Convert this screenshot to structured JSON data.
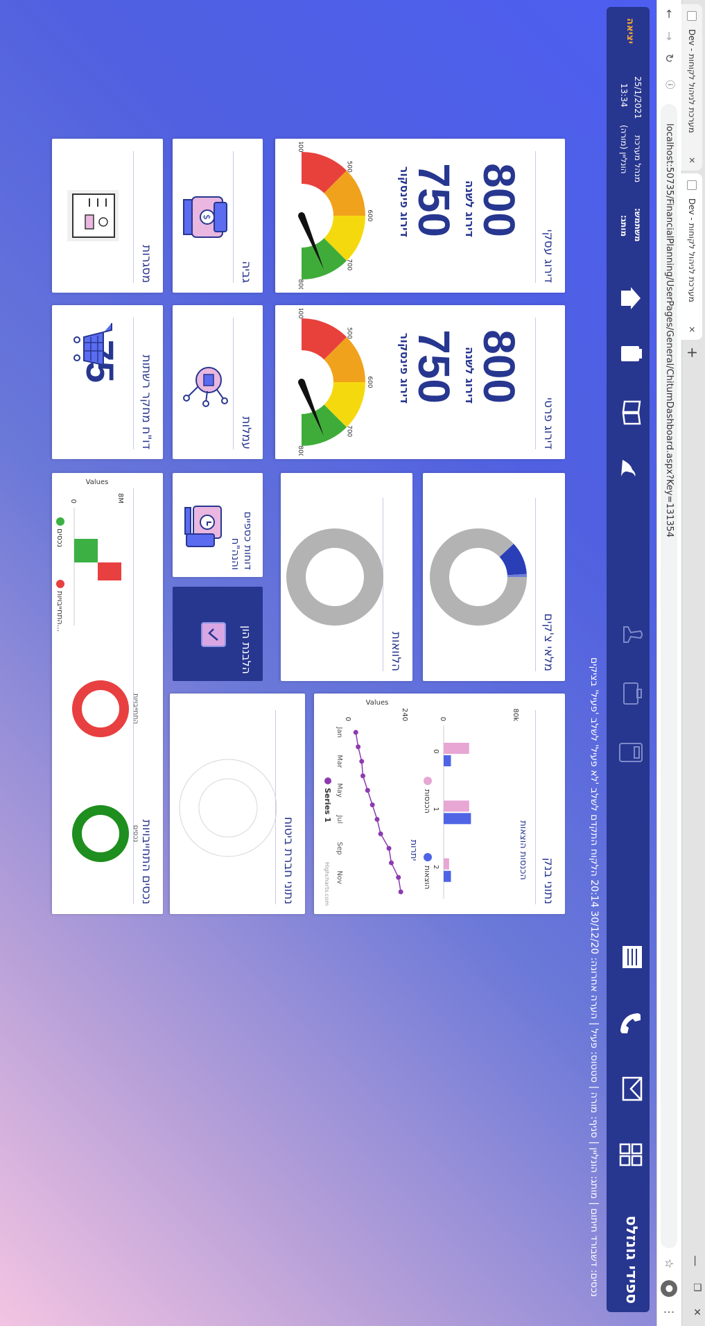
{
  "browser": {
    "tabs": [
      {
        "label": "Dev - מערכת לניהול לקוחות"
      },
      {
        "label": "Dev - מערכת לניהול לקוחות"
      }
    ],
    "new_tab": "+",
    "url": "localhost:50735/FinancialPlanning/UserPages/General/ChitumDashboard.aspx?Key=131354"
  },
  "header": {
    "exit_label": "יציאה",
    "date": "25/1/2021",
    "time": "13:34",
    "manager_label": "מנהל מערכת",
    "manager_value": "הונליין (מורה)",
    "user_label": "משתמש:",
    "branch_label": "מותג:",
    "customer_name": "ספידי גונזלס",
    "status_line": "נכסים: דשבורד חיתום | מותג: הונליין | סניף: מורה | סטטוס: פעיל | הערה אחרונה: 30/12/20 20:14 הלקוח התקדם לשלב 'לא פעיל' לשלב 'פעיל' בציקים"
  },
  "cards": {
    "business_rating": {
      "title": "דירוג עסקי",
      "yearly_value": "800",
      "yearly_label": "דירוג לשנה",
      "finscore_value": "750",
      "finscore_label": "דירוג פינסקור",
      "gauge": {
        "min": 400,
        "max": 800,
        "ticks": [
          "400",
          "500",
          "600",
          "700",
          "800"
        ],
        "value": 750
      }
    },
    "private_rating": {
      "title": "דירוג פרטי",
      "yearly_value": "800",
      "yearly_label": "דירוג לשנה",
      "finscore_value": "750",
      "finscore_label": "דירוג פינסקור",
      "gauge": {
        "min": 400,
        "max": 800,
        "ticks": [
          "400",
          "500",
          "600",
          "700",
          "800"
        ],
        "value": 750
      }
    },
    "check_inventory": {
      "title": "מלאי צ'קים"
    },
    "loans": {
      "title": "הלוואות"
    },
    "bank_data": {
      "title": "נתוני בנק"
    },
    "insurance_data": {
      "title": "נתוני חברת ביטוח"
    },
    "collection": {
      "title": "גביה"
    },
    "commissions": {
      "title": "עמלות"
    },
    "financial_reports": {
      "title": "דוחות כספיים והנה\"ח"
    },
    "money_laundering": {
      "title": "הלבנת הון"
    },
    "frameworks": {
      "title": "מסגרות"
    },
    "network_research": {
      "title": "דו\"ח מחקר רשתות",
      "value": "75"
    },
    "assets_liabilities": {
      "title": "נכסים התחייבויות"
    }
  },
  "chart_data": [
    {
      "type": "bar",
      "title": "הכנסות הוצאות",
      "categories": [
        "0",
        "1",
        "2"
      ],
      "series": [
        {
          "name": "הכנסות",
          "values": [
            28000,
            28000,
            6000
          ]
        },
        {
          "name": "הוצאות",
          "values": [
            8000,
            30000,
            8000
          ]
        }
      ],
      "ylim": [
        0,
        80000
      ],
      "ytick_labels": [
        "0",
        "80k"
      ],
      "colors": [
        "#e7a6d3",
        "#4f64e5"
      ],
      "legend": "bottom"
    },
    {
      "type": "line",
      "title": "יתרות",
      "ylabel": "Values",
      "categories": [
        "Jan",
        "Feb",
        "Mar",
        "Apr",
        "May",
        "Jun",
        "Jul",
        "Aug",
        "Sep",
        "Oct",
        "Nov",
        "Dec"
      ],
      "series": [
        {
          "name": "Series 1",
          "values": [
            30,
            40,
            55,
            60,
            80,
            100,
            120,
            135,
            170,
            180,
            210,
            220
          ]
        }
      ],
      "ylim": [
        0,
        240
      ],
      "ytick_labels": [
        "0",
        "240"
      ],
      "xtick_labels": [
        "Jan",
        "Mar",
        "May",
        "Jul",
        "Sep",
        "Nov"
      ],
      "credit": "Highcharts.com",
      "legend": "bottom"
    },
    {
      "type": "bar",
      "title": "",
      "ylabel": "Values",
      "categories": [
        "נכסים",
        "התחייבויות"
      ],
      "values": [
        4000000,
        4000000
      ],
      "colors": [
        "#3cb043",
        "#e84040"
      ],
      "ylim": [
        0,
        8000000
      ],
      "ytick_labels": [
        "0",
        "8M"
      ],
      "legend_labels": [
        "נכסים",
        "התחייבויות..."
      ]
    },
    {
      "type": "pie",
      "title": "נכסים",
      "values": [
        100
      ],
      "colors": [
        "#1e8e1e"
      ]
    },
    {
      "type": "pie",
      "title": "התחייבויות",
      "values": [
        100
      ],
      "colors": [
        "#e84040"
      ]
    },
    {
      "type": "pie",
      "title": "מלאי צ'קים",
      "values": [
        88,
        11,
        1
      ],
      "colors": [
        "#b3b3b3",
        "#2a3eb8",
        "#6f7fd8"
      ]
    },
    {
      "type": "pie",
      "title": "הלוואות",
      "values": [
        100
      ],
      "colors": [
        "#b3b3b3"
      ]
    }
  ]
}
